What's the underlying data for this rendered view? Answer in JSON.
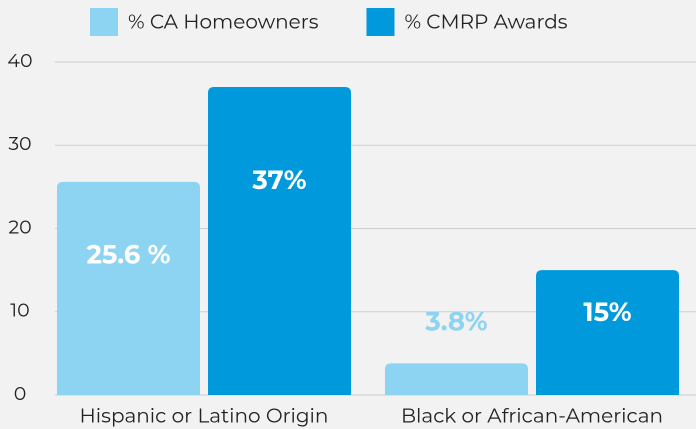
{
  "chart_data": {
    "type": "bar",
    "categories": [
      "Hispanic or Latino Origin",
      "Black or African-American"
    ],
    "series": [
      {
        "name": "% CA Homeowners",
        "color": "#8dd4f2",
        "values": [
          25.6,
          3.8
        ],
        "value_labels": [
          "25.6 %",
          "3.8%"
        ]
      },
      {
        "name": "% CMRP Awards",
        "color": "#0099dc",
        "values": [
          37,
          15
        ],
        "value_labels": [
          "37%",
          "15%"
        ]
      }
    ],
    "ylim": [
      0,
      40
    ],
    "yticks": [
      0,
      10,
      20,
      30,
      40
    ],
    "grid": true,
    "legend": "top"
  }
}
